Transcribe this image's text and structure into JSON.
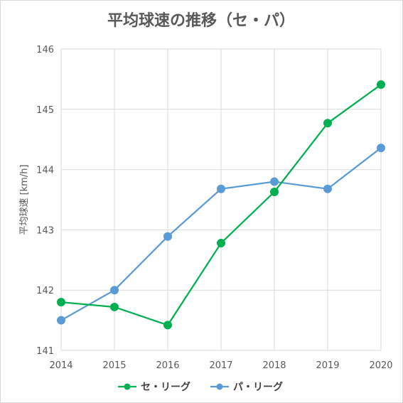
{
  "chart_data": {
    "type": "line",
    "title": "平均球速の推移（セ・パ）",
    "xlabel": "",
    "ylabel": "平均球速 [km/h]",
    "x": [
      "2014",
      "2015",
      "2016",
      "2017",
      "2018",
      "2019",
      "2020"
    ],
    "ylim": [
      141,
      146
    ],
    "yticks": [
      "141",
      "142",
      "143",
      "144",
      "145",
      "146"
    ],
    "grid": true,
    "legend": "bottom",
    "series": [
      {
        "name": "セ・リーグ",
        "color": "#00b050",
        "values": [
          141.8,
          141.72,
          141.42,
          142.78,
          143.63,
          144.77,
          145.41
        ]
      },
      {
        "name": "パ・リーグ",
        "color": "#5b9bd5",
        "values": [
          141.5,
          142.0,
          142.89,
          143.68,
          143.8,
          143.68,
          144.36
        ]
      }
    ]
  }
}
